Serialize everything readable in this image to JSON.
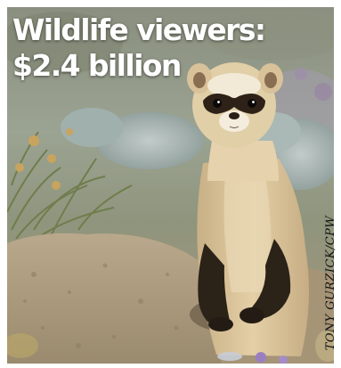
{
  "headline": {
    "line1": "Wildlife viewers:",
    "line2": "$2.4 billion"
  },
  "credit": "TONY GURZICK/CPW",
  "photo": {
    "subject": "black-footed ferret",
    "colors": {
      "sky": "#9aa190",
      "shrub": "#a6b4b4",
      "dirt": "#ad9c80",
      "fur": "#d9c197",
      "mask": "#2e2218",
      "legs": "#2b2218"
    }
  }
}
